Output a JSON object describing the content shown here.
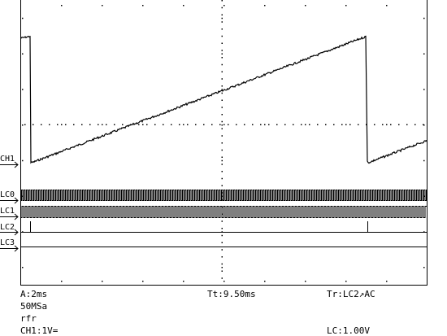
{
  "channels": {
    "ch1": "CH1",
    "lc0": "LC0",
    "lc1": "LC1",
    "lc2": "LC2",
    "lc3": "LC3"
  },
  "status": {
    "timebase": "A:2ms",
    "trigger_time": "Tt:9.50ms",
    "trigger": "Tr:LC2↗AC",
    "sample_rate": "50MSa",
    "mode": "rfr",
    "ch1_scale": "CH1:1V=",
    "logic_level": "LC:1.00V"
  }
}
